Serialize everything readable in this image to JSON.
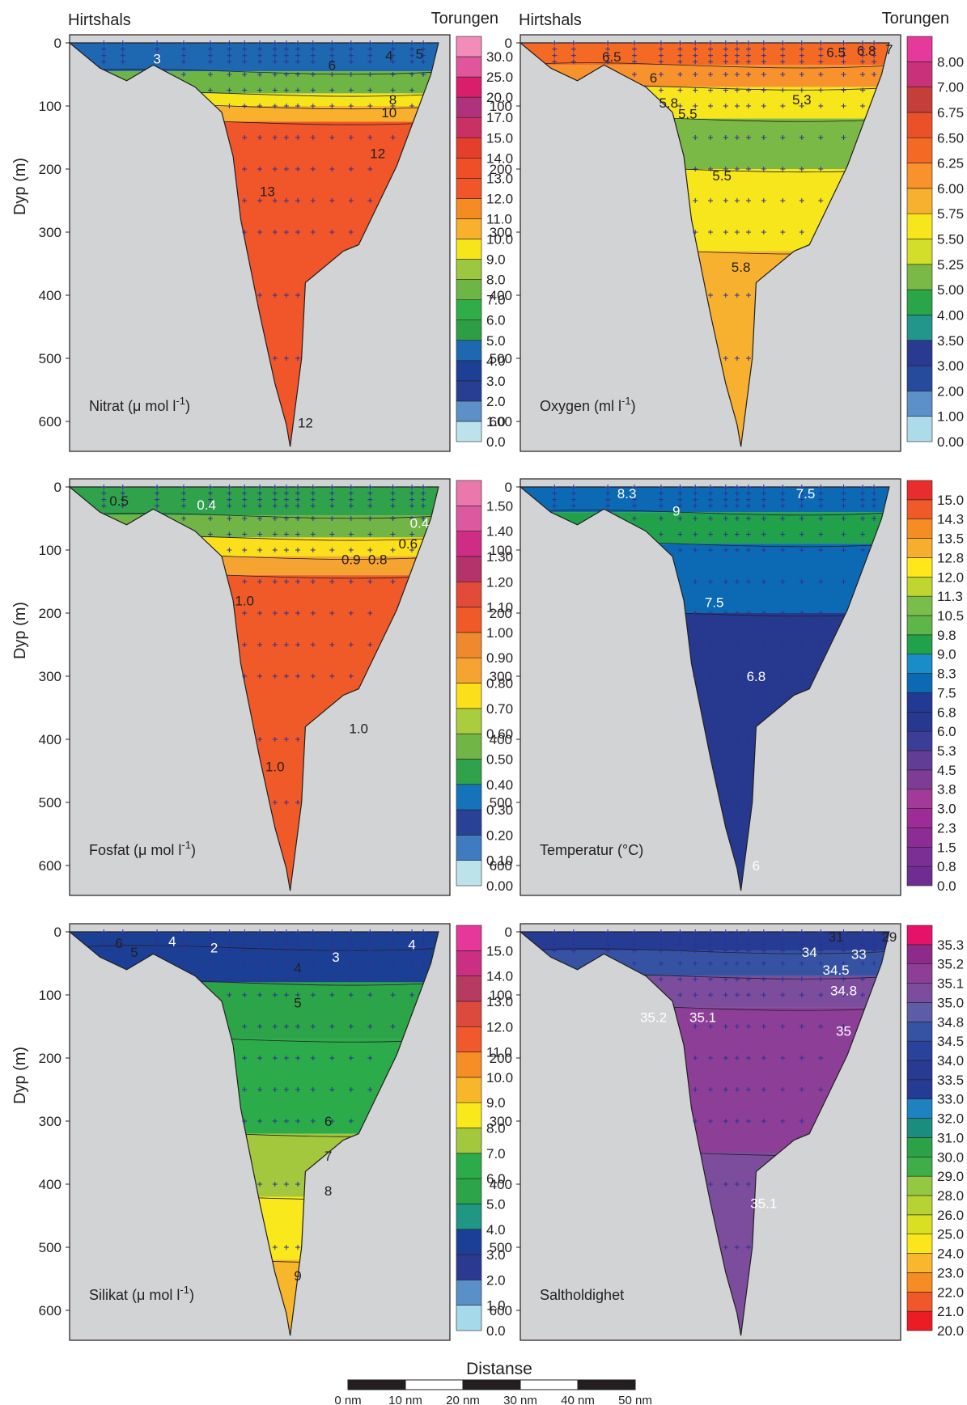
{
  "figure": {
    "left_station": "Hirtshals",
    "right_station": "Torungen",
    "y_axis_label": "Dyp (m)",
    "depth_ticks": [
      0,
      100,
      200,
      300,
      400,
      500,
      600
    ],
    "scalebar_title": "Distanse",
    "scalebar_ticks": [
      "0 nm",
      "10 nm",
      "20 nm",
      "30 nm",
      "40 nm",
      "50 nm"
    ]
  },
  "chart_data": [
    {
      "type": "heatmap",
      "id": "nitrat",
      "title": "Nitrat (μ mol l",
      "title_sup": "-1",
      "title_suffix": ")",
      "ylim": [
        0,
        650
      ],
      "scale_labels": [
        "0.0",
        "1.0",
        "2.0",
        "3.0",
        "4.0",
        "5.0",
        "6.0",
        "7.0",
        "8.0",
        "9.0",
        "10.0",
        "11.0",
        "12.0",
        "13.0",
        "14.0",
        "15.0",
        "17.0",
        "20.0",
        "25.0",
        "30.0"
      ],
      "contour_labels": [
        {
          "text": "3",
          "color": "#ffffff",
          "d": 0.23,
          "z": 25
        },
        {
          "text": "4",
          "color": "#231f20",
          "d": 0.84,
          "z": 20
        },
        {
          "text": "5",
          "color": "#231f20",
          "d": 0.92,
          "z": 17
        },
        {
          "text": "6",
          "color": "#231f20",
          "d": 0.69,
          "z": 35
        },
        {
          "text": "8",
          "color": "#231f20",
          "d": 0.85,
          "z": 90
        },
        {
          "text": "10",
          "color": "#231f20",
          "d": 0.84,
          "z": 110
        },
        {
          "text": "12",
          "color": "#231f20",
          "d": 0.81,
          "z": 175
        },
        {
          "text": "13",
          "color": "#231f20",
          "d": 0.52,
          "z": 235
        },
        {
          "text": "12",
          "color": "#231f20",
          "d": 0.62,
          "z": 602
        }
      ]
    },
    {
      "type": "heatmap",
      "id": "oxygen",
      "title": "Oxygen (ml l",
      "title_sup": "-1",
      "title_suffix": ")",
      "ylim": [
        0,
        650
      ],
      "scale_labels": [
        "0.00",
        "1.00",
        "2.00",
        "3.00",
        "3.50",
        "4.00",
        "5.00",
        "5.25",
        "5.50",
        "5.75",
        "6.00",
        "6.25",
        "6.50",
        "6.75",
        "7.00",
        "8.00"
      ],
      "contour_labels": [
        {
          "text": "6.5",
          "color": "#231f20",
          "d": 0.24,
          "z": 22
        },
        {
          "text": "6.5",
          "color": "#231f20",
          "d": 0.83,
          "z": 15
        },
        {
          "text": "6.8",
          "color": "#231f20",
          "d": 0.91,
          "z": 12
        },
        {
          "text": "7",
          "color": "#231f20",
          "d": 0.97,
          "z": 10
        },
        {
          "text": "6",
          "color": "#231f20",
          "d": 0.35,
          "z": 55
        },
        {
          "text": "5.8",
          "color": "#231f20",
          "d": 0.39,
          "z": 95
        },
        {
          "text": "5.5",
          "color": "#231f20",
          "d": 0.44,
          "z": 112
        },
        {
          "text": "5.3",
          "color": "#231f20",
          "d": 0.74,
          "z": 90
        },
        {
          "text": "5.5",
          "color": "#231f20",
          "d": 0.53,
          "z": 210
        },
        {
          "text": "5.8",
          "color": "#231f20",
          "d": 0.58,
          "z": 355
        }
      ]
    },
    {
      "type": "heatmap",
      "id": "fosfat",
      "title": "Fosfat (μ mol l",
      "title_sup": "-1",
      "title_suffix": ")",
      "ylim": [
        0,
        650
      ],
      "scale_labels": [
        "0.00",
        "0.10",
        "0.20",
        "0.30",
        "0.40",
        "0.50",
        "0.60",
        "0.70",
        "0.80",
        "0.90",
        "1.00",
        "1.10",
        "1.20",
        "1.30",
        "1.40",
        "1.50"
      ],
      "contour_labels": [
        {
          "text": "0.5",
          "color": "#231f20",
          "d": 0.13,
          "z": 22
        },
        {
          "text": "0.4",
          "color": "#ffffff",
          "d": 0.36,
          "z": 28
        },
        {
          "text": "0.4",
          "color": "#ffffff",
          "d": 0.92,
          "z": 57
        },
        {
          "text": "0.6",
          "color": "#231f20",
          "d": 0.89,
          "z": 90
        },
        {
          "text": "0.9",
          "color": "#231f20",
          "d": 0.74,
          "z": 115
        },
        {
          "text": "0.8",
          "color": "#231f20",
          "d": 0.81,
          "z": 115
        },
        {
          "text": "1.0",
          "color": "#231f20",
          "d": 0.46,
          "z": 180
        },
        {
          "text": "1.0",
          "color": "#231f20",
          "d": 0.76,
          "z": 383
        },
        {
          "text": "1.0",
          "color": "#231f20",
          "d": 0.54,
          "z": 443
        }
      ]
    },
    {
      "type": "heatmap",
      "id": "temperatur",
      "title": "Temperatur (°C)",
      "title_sup": "",
      "title_suffix": "",
      "ylim": [
        0,
        650
      ],
      "scale_labels": [
        "0.0",
        "0.8",
        "1.5",
        "2.3",
        "3.0",
        "3.8",
        "4.5",
        "5.3",
        "6.0",
        "6.8",
        "7.5",
        "8.3",
        "9.0",
        "9.8",
        "10.5",
        "11.3",
        "12.0",
        "12.8",
        "13.5",
        "14.3",
        "15.0"
      ],
      "contour_labels": [
        {
          "text": "8.3",
          "color": "#ffffff",
          "d": 0.28,
          "z": 10
        },
        {
          "text": "7.5",
          "color": "#ffffff",
          "d": 0.75,
          "z": 10
        },
        {
          "text": "9",
          "color": "#ffffff",
          "d": 0.41,
          "z": 38
        },
        {
          "text": "7.5",
          "color": "#ffffff",
          "d": 0.51,
          "z": 183
        },
        {
          "text": "6.8",
          "color": "#ffffff",
          "d": 0.62,
          "z": 300
        },
        {
          "text": "6",
          "color": "#ffffff",
          "d": 0.62,
          "z": 600
        }
      ]
    },
    {
      "type": "heatmap",
      "id": "silikat",
      "title": "Silikat (μ mol l",
      "title_sup": "-1",
      "title_suffix": ")",
      "ylim": [
        0,
        650
      ],
      "scale_labels": [
        "0.0",
        "1.0",
        "2.0",
        "3.0",
        "4.0",
        "5.0",
        "6.0",
        "7.0",
        "8.0",
        "9.0",
        "10.0",
        "11.0",
        "12.0",
        "13.0",
        "14.0",
        "15.0"
      ],
      "contour_labels": [
        {
          "text": "6",
          "color": "#231f20",
          "d": 0.13,
          "z": 18
        },
        {
          "text": "5",
          "color": "#231f20",
          "d": 0.17,
          "z": 32
        },
        {
          "text": "4",
          "color": "#ffffff",
          "d": 0.27,
          "z": 15
        },
        {
          "text": "2",
          "color": "#ffffff",
          "d": 0.38,
          "z": 25
        },
        {
          "text": "3",
          "color": "#ffffff",
          "d": 0.7,
          "z": 40
        },
        {
          "text": "4",
          "color": "#ffffff",
          "d": 0.9,
          "z": 20
        },
        {
          "text": "4",
          "color": "#231f20",
          "d": 0.6,
          "z": 57
        },
        {
          "text": "5",
          "color": "#231f20",
          "d": 0.6,
          "z": 112
        },
        {
          "text": "6",
          "color": "#231f20",
          "d": 0.68,
          "z": 300
        },
        {
          "text": "7",
          "color": "#231f20",
          "d": 0.68,
          "z": 355
        },
        {
          "text": "8",
          "color": "#231f20",
          "d": 0.68,
          "z": 410
        },
        {
          "text": "9",
          "color": "#231f20",
          "d": 0.6,
          "z": 545
        }
      ]
    },
    {
      "type": "heatmap",
      "id": "saltholdighet",
      "title": "Saltholdighet",
      "title_sup": "",
      "title_suffix": "",
      "ylim": [
        0,
        650
      ],
      "scale_labels": [
        "20.0",
        "21.0",
        "22.0",
        "23.0",
        "24.0",
        "25.0",
        "26.0",
        "28.0",
        "29.0",
        "30.0",
        "31.0",
        "32.0",
        "33.0",
        "33.5",
        "34.0",
        "34.5",
        "34.8",
        "35.0",
        "35.1",
        "35.2",
        "35.3"
      ],
      "contour_labels": [
        {
          "text": "31",
          "color": "#231f20",
          "d": 0.83,
          "z": 8
        },
        {
          "text": "29",
          "color": "#231f20",
          "d": 0.97,
          "z": 8
        },
        {
          "text": "34",
          "color": "#ffffff",
          "d": 0.76,
          "z": 32
        },
        {
          "text": "33",
          "color": "#ffffff",
          "d": 0.89,
          "z": 35
        },
        {
          "text": "34.5",
          "color": "#ffffff",
          "d": 0.83,
          "z": 60
        },
        {
          "text": "34.8",
          "color": "#ffffff",
          "d": 0.85,
          "z": 93
        },
        {
          "text": "35.2",
          "color": "#ffffff",
          "d": 0.35,
          "z": 135
        },
        {
          "text": "35.1",
          "color": "#ffffff",
          "d": 0.48,
          "z": 135
        },
        {
          "text": "35",
          "color": "#ffffff",
          "d": 0.85,
          "z": 157
        },
        {
          "text": "35.1",
          "color": "#ffffff",
          "d": 0.64,
          "z": 430
        }
      ]
    }
  ]
}
